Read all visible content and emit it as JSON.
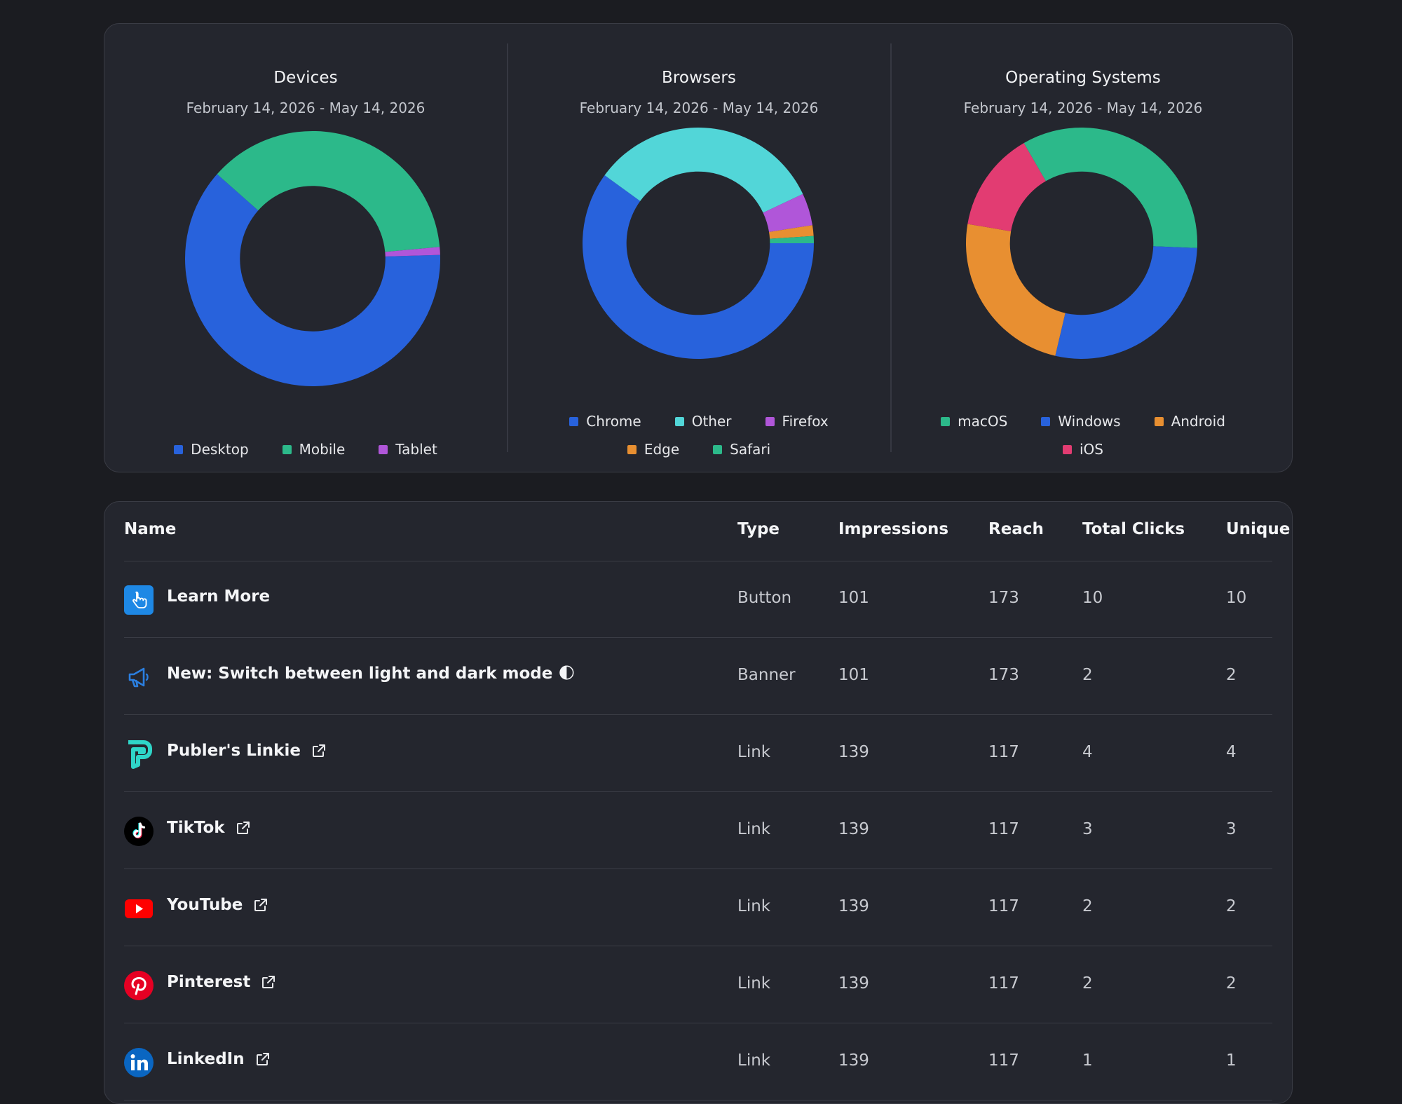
{
  "colors": {
    "blue": "#2862dc",
    "green": "#2cb98a",
    "purple": "#b056d9",
    "cyan": "#52d6d8",
    "orange": "#e88f31",
    "pink": "#e23c72"
  },
  "charts": [
    {
      "title": "Devices",
      "date_range": "February 14, 2026 - May 14, 2026",
      "legend": [
        [
          "Desktop",
          "Mobile",
          "Tablet"
        ]
      ]
    },
    {
      "title": "Browsers",
      "date_range": "February 14, 2026 - May 14, 2026",
      "legend": [
        [
          "Chrome",
          "Other",
          "Firefox"
        ],
        [
          "Edge",
          "Safari"
        ]
      ]
    },
    {
      "title": "Operating Systems",
      "date_range": "February 14, 2026 - May 14, 2026",
      "legend": [
        [
          "macOS",
          "Windows",
          "Android"
        ],
        [
          "iOS"
        ]
      ]
    }
  ],
  "chart_data": [
    {
      "type": "pie",
      "title": "Devices",
      "categories": [
        "Desktop",
        "Mobile",
        "Tablet"
      ],
      "values": [
        62,
        37,
        1
      ],
      "colors": [
        "#2862dc",
        "#2cb98a",
        "#b056d9"
      ]
    },
    {
      "type": "pie",
      "title": "Browsers",
      "categories": [
        "Chrome",
        "Other",
        "Firefox",
        "Edge",
        "Safari"
      ],
      "values": [
        60,
        33,
        4.5,
        1.5,
        1
      ],
      "colors": [
        "#2862dc",
        "#52d6d8",
        "#b056d9",
        "#e88f31",
        "#2cb98a"
      ]
    },
    {
      "type": "pie",
      "title": "Operating Systems",
      "categories": [
        "macOS",
        "Windows",
        "Android",
        "iOS"
      ],
      "values": [
        34,
        28,
        24,
        14
      ],
      "colors": [
        "#2cb98a",
        "#2862dc",
        "#e88f31",
        "#e23c72"
      ]
    }
  ],
  "table": {
    "columns": [
      "Name",
      "Type",
      "Impressions",
      "Reach",
      "Total Clicks",
      "Unique Clicks"
    ],
    "rows": [
      {
        "name": "Learn More",
        "icon": "hand-pointer-icon",
        "external": false,
        "type": "Button",
        "impressions": "101",
        "reach": "173",
        "total_clicks": "10",
        "unique_clicks": "10"
      },
      {
        "name": "New: Switch between light and dark mode 🌓",
        "icon": "megaphone-icon",
        "external": false,
        "type": "Banner",
        "impressions": "101",
        "reach": "173",
        "total_clicks": "2",
        "unique_clicks": "2"
      },
      {
        "name": "Publer's Linkie",
        "icon": "publer-logo-icon",
        "external": true,
        "type": "Link",
        "impressions": "139",
        "reach": "117",
        "total_clicks": "4",
        "unique_clicks": "4"
      },
      {
        "name": "TikTok",
        "icon": "tiktok-logo-icon",
        "external": true,
        "type": "Link",
        "impressions": "139",
        "reach": "117",
        "total_clicks": "3",
        "unique_clicks": "3"
      },
      {
        "name": "YouTube",
        "icon": "youtube-logo-icon",
        "external": true,
        "type": "Link",
        "impressions": "139",
        "reach": "117",
        "total_clicks": "2",
        "unique_clicks": "2"
      },
      {
        "name": "Pinterest",
        "icon": "pinterest-logo-icon",
        "external": true,
        "type": "Link",
        "impressions": "139",
        "reach": "117",
        "total_clicks": "2",
        "unique_clicks": "2"
      },
      {
        "name": "LinkedIn",
        "icon": "linkedin-logo-icon",
        "external": true,
        "type": "Link",
        "impressions": "139",
        "reach": "117",
        "total_clicks": "1",
        "unique_clicks": "1"
      }
    ]
  }
}
